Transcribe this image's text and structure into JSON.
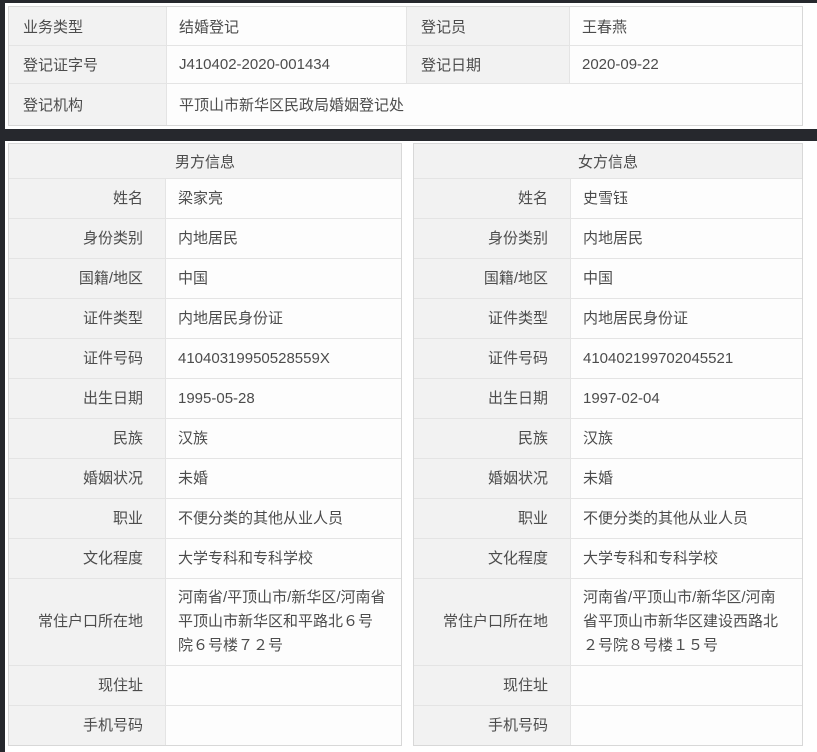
{
  "colors": {
    "chrome_dark": "#26282d",
    "label_bg": "#f2f2f2",
    "value_bg": "#fdfdfd",
    "border": "#e4e4e4",
    "outer_border": "#d8d8d8",
    "text": "#4c4c4c"
  },
  "summary": {
    "business_type_label": "业务类型",
    "business_type": "结婚登记",
    "registrar_label": "登记员",
    "registrar": "王春燕",
    "cert_no_label": "登记证字号",
    "cert_no": "J410402-2020-001434",
    "reg_date_label": "登记日期",
    "reg_date": "2020-09-22",
    "agency_label": "登记机构",
    "agency": "平顶山市新华区民政局婚姻登记处"
  },
  "groom": {
    "title": "男方信息",
    "fields": [
      {
        "label": "姓名",
        "value": "梁家亮"
      },
      {
        "label": "身份类别",
        "value": "内地居民"
      },
      {
        "label": "国籍/地区",
        "value": "中国"
      },
      {
        "label": "证件类型",
        "value": "内地居民身份证"
      },
      {
        "label": "证件号码",
        "value": "41040319950528559X"
      },
      {
        "label": "出生日期",
        "value": "1995-05-28"
      },
      {
        "label": "民族",
        "value": "汉族"
      },
      {
        "label": "婚姻状况",
        "value": "未婚"
      },
      {
        "label": "职业",
        "value": "不便分类的其他从业人员"
      },
      {
        "label": "文化程度",
        "value": "大学专科和专科学校"
      },
      {
        "label": "常住户口所在地",
        "value": "河南省/平顶山市/新华区/河南省平顶山市新华区和平路北６号院６号楼７２号"
      },
      {
        "label": "现住址",
        "value": ""
      },
      {
        "label": "手机号码",
        "value": ""
      }
    ]
  },
  "bride": {
    "title": "女方信息",
    "fields": [
      {
        "label": "姓名",
        "value": "史雪钰"
      },
      {
        "label": "身份类别",
        "value": "内地居民"
      },
      {
        "label": "国籍/地区",
        "value": "中国"
      },
      {
        "label": "证件类型",
        "value": "内地居民身份证"
      },
      {
        "label": "证件号码",
        "value": "410402199702045521"
      },
      {
        "label": "出生日期",
        "value": "1997-02-04"
      },
      {
        "label": "民族",
        "value": "汉族"
      },
      {
        "label": "婚姻状况",
        "value": "未婚"
      },
      {
        "label": "职业",
        "value": "不便分类的其他从业人员"
      },
      {
        "label": "文化程度",
        "value": "大学专科和专科学校"
      },
      {
        "label": "常住户口所在地",
        "value": "河南省/平顶山市/新华区/河南省平顶山市新华区建设西路北２号院８号楼１５号"
      },
      {
        "label": "现住址",
        "value": ""
      },
      {
        "label": "手机号码",
        "value": ""
      }
    ]
  }
}
